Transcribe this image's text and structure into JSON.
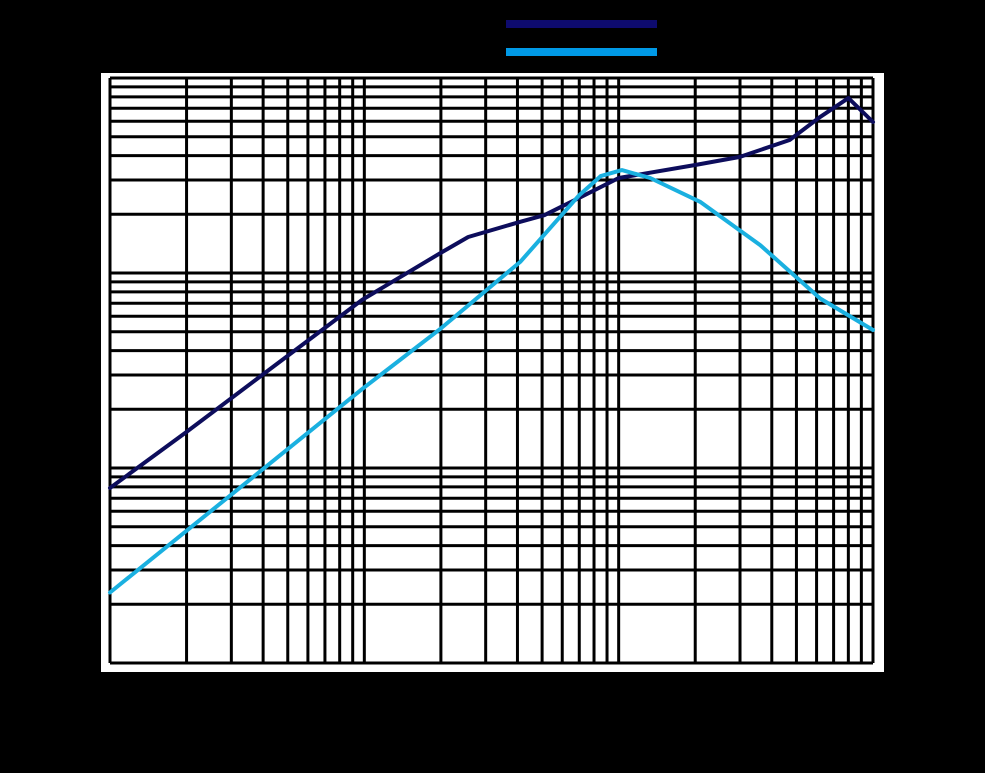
{
  "chart_data": {
    "type": "line",
    "title": "",
    "xlabel": "",
    "ylabel": "",
    "x_scale": "log",
    "y_scale": "log",
    "xlim": [
      1,
      1000
    ],
    "ylim": [
      1,
      1000
    ],
    "grid": true,
    "legend_placement": "top-center",
    "background": "#000000",
    "plot_background": "#ffffff",
    "grid_color": "#000000",
    "series": [
      {
        "color": "#0d0d5c",
        "legend_color": "#0e0b6e",
        "x": [
          1,
          1.97,
          9.8,
          20.2,
          25.6,
          41,
          51,
          70,
          100,
          200,
          300,
          470,
          620,
          800,
          1000
        ],
        "y": [
          7.9,
          15.1,
          72.8,
          128,
          153,
          183,
          198,
          243,
          307,
          358,
          394,
          481,
          632,
          789,
          595
        ]
      },
      {
        "color": "#1ab0e0",
        "legend_color": "#0099e6",
        "x": [
          1,
          9.8,
          20,
          41,
          70,
          85,
          103,
          133,
          210,
          360,
          620,
          1000
        ],
        "y": [
          2.3,
          25.4,
          52,
          114,
          251,
          314,
          337,
          307,
          231,
          139,
          74,
          51
        ]
      }
    ]
  }
}
